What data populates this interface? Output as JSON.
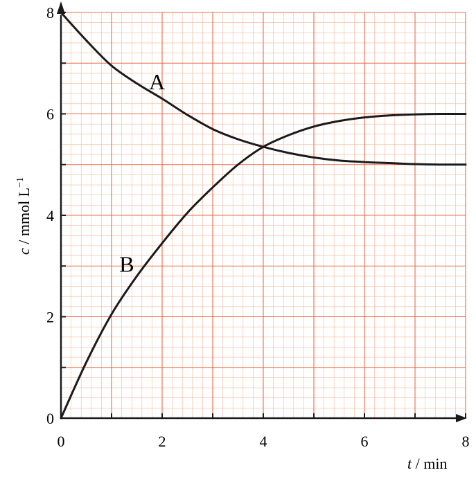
{
  "chart_data": {
    "type": "line",
    "title": "",
    "xlabel": {
      "symbol": "t",
      "rest": " / min"
    },
    "ylabel": {
      "symbol": "c",
      "rest": " / mmol L",
      "sup": "−1"
    },
    "xlim": [
      0,
      8
    ],
    "ylim": [
      0,
      8
    ],
    "x_ticks": [
      0,
      2,
      4,
      6,
      8
    ],
    "x_tick_labels": [
      "0",
      "2",
      "4",
      "6",
      "8"
    ],
    "y_ticks": [
      0,
      2,
      4,
      6,
      8
    ],
    "y_tick_labels": [
      "0",
      "2",
      "4",
      "6",
      "8"
    ],
    "grid": true,
    "grid_minor_step": 0.2,
    "grid_major_step": 1,
    "legend": "none",
    "series": [
      {
        "name": "A",
        "x": [
          0,
          0.5,
          1,
          1.5,
          2,
          2.5,
          3,
          3.5,
          4,
          4.5,
          5,
          5.5,
          6,
          6.5,
          7,
          7.5,
          8
        ],
        "y": [
          8.0,
          7.45,
          6.95,
          6.6,
          6.3,
          5.98,
          5.7,
          5.5,
          5.35,
          5.23,
          5.14,
          5.08,
          5.05,
          5.03,
          5.01,
          5.0,
          5.0
        ]
      },
      {
        "name": "B",
        "x": [
          0,
          0.5,
          1,
          1.5,
          2,
          2.5,
          3,
          3.5,
          4,
          4.5,
          5,
          5.5,
          6,
          6.5,
          7,
          7.5,
          8
        ],
        "y": [
          0.0,
          1.1,
          2.05,
          2.8,
          3.45,
          4.05,
          4.55,
          5.0,
          5.35,
          5.58,
          5.75,
          5.86,
          5.93,
          5.97,
          5.99,
          6.0,
          6.0
        ]
      }
    ],
    "annotations": [
      {
        "text": "A",
        "x": 1.9,
        "y": 6.65
      },
      {
        "text": "B",
        "x": 1.3,
        "y": 3.05
      }
    ],
    "colors": {
      "minor_grid": "#f6b89c",
      "major_grid": "#ee6a48",
      "line": "#1a1a1a",
      "axis": "#1a1a1a"
    }
  }
}
